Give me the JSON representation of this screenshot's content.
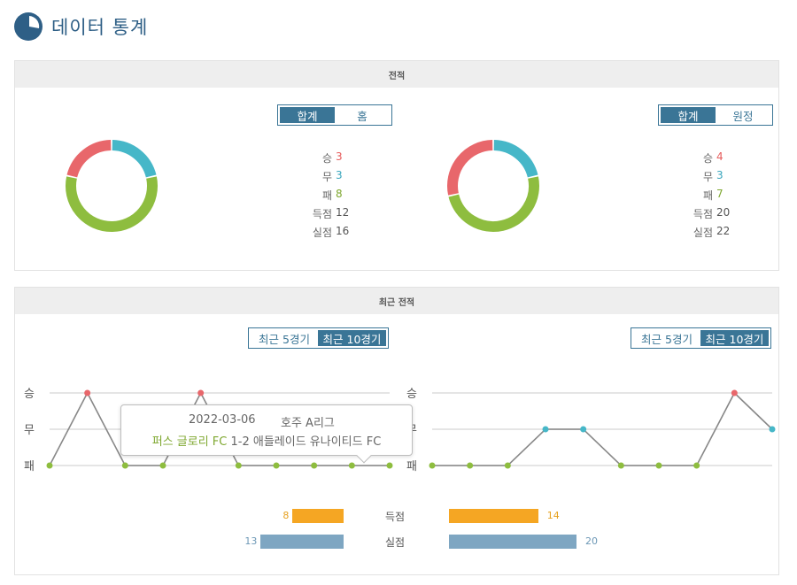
{
  "header": {
    "title": "데이터 통계",
    "icon": "pie-chart-icon"
  },
  "record": {
    "title": "전적",
    "left": {
      "toggle": {
        "options": [
          "합계",
          "홈"
        ],
        "active": 0
      },
      "stats": [
        {
          "label": "승",
          "value": "3"
        },
        {
          "label": "무",
          "value": "3"
        },
        {
          "label": "패",
          "value": "8"
        },
        {
          "label": "득점",
          "value": "12"
        },
        {
          "label": "실점",
          "value": "16"
        }
      ]
    },
    "right": {
      "toggle": {
        "options": [
          "합계",
          "원정"
        ],
        "active": 0
      },
      "stats": [
        {
          "label": "승",
          "value": "4"
        },
        {
          "label": "무",
          "value": "3"
        },
        {
          "label": "패",
          "value": "7"
        },
        {
          "label": "득점",
          "value": "20"
        },
        {
          "label": "실점",
          "value": "22"
        }
      ]
    }
  },
  "recent": {
    "title": "최근 전적",
    "left": {
      "toggle": {
        "options": [
          "최근 5경기",
          "최근 10경기"
        ],
        "active": 1
      },
      "axis_labels": [
        "승",
        "무",
        "패"
      ],
      "results": [
        "패",
        "승",
        "패",
        "패",
        "승",
        "패",
        "패",
        "패",
        "패",
        "패"
      ]
    },
    "right": {
      "toggle": {
        "options": [
          "최근 5경기",
          "최근 10경기"
        ],
        "active": 1
      },
      "axis_labels": [
        "승",
        "무",
        "패"
      ],
      "results": [
        "패",
        "패",
        "패",
        "무",
        "무",
        "패",
        "패",
        "패",
        "승",
        "무"
      ]
    },
    "tooltip": {
      "date": "2022-03-06",
      "league": "호주 A리그",
      "home": "퍼스 글로리 FC",
      "score": "1-2",
      "away": "애들레이드 유나이티드 FC"
    },
    "goals": {
      "scored": {
        "label": "득점",
        "left": 8,
        "right": 14
      },
      "conceded": {
        "label": "실점",
        "left": 13,
        "right": 20
      }
    }
  },
  "colors": {
    "win": "#e8676b",
    "draw": "#46b7c8",
    "loss": "#8ebd3f",
    "accent": "#3a7596",
    "scored_bar": "#f5a623",
    "conceded_bar": "#7ea6c2"
  }
}
